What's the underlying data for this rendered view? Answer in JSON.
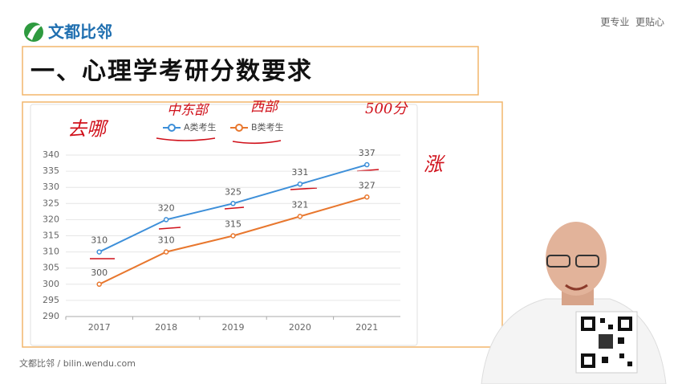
{
  "header": {
    "logo": "文都比邻",
    "slogan": "更专业  更贴心",
    "title": "一、心理学考研分数要求"
  },
  "footer": "文都比邻 / bilin.wendu.com",
  "annotations": [
    "去哪",
    "中东部",
    "西部",
    "500分",
    "涨"
  ],
  "chart_data": {
    "type": "line",
    "categories": [
      "2017",
      "2018",
      "2019",
      "2020",
      "2021"
    ],
    "series": [
      {
        "name": "A类考生",
        "color": "#3d8fd9",
        "values": [
          310,
          320,
          325,
          331,
          337
        ]
      },
      {
        "name": "B类考生",
        "color": "#e8772e",
        "values": [
          300,
          310,
          315,
          321,
          327
        ]
      }
    ],
    "ylim": [
      290,
      340
    ],
    "yticks": [
      290,
      295,
      300,
      305,
      310,
      315,
      320,
      325,
      330,
      335,
      340
    ],
    "grid": true,
    "legend": "top"
  }
}
